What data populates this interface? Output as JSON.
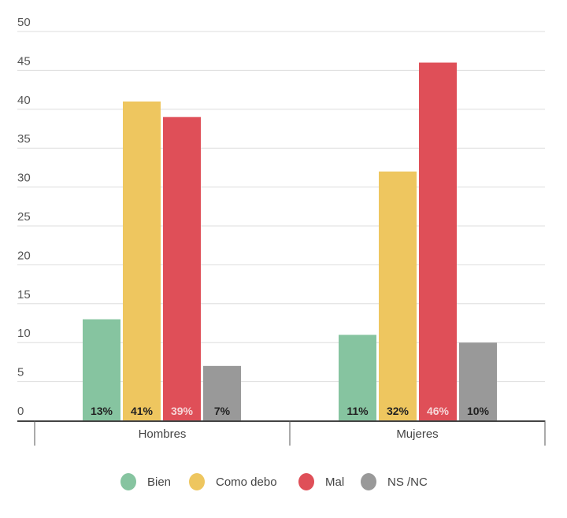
{
  "chart_data": {
    "type": "bar",
    "title": "",
    "xlabel": "",
    "ylabel": "",
    "ylim": [
      0,
      50
    ],
    "yticks": [
      0,
      5,
      10,
      15,
      20,
      25,
      30,
      35,
      40,
      45,
      50
    ],
    "grid": true,
    "categories": [
      "Hombres",
      "Mujeres"
    ],
    "series": [
      {
        "name": "Bien",
        "values": [
          13,
          11
        ],
        "labels": [
          "13%",
          "11%"
        ],
        "color": "#86c4a0",
        "label_color": "#222222"
      },
      {
        "name": "Como debo",
        "values": [
          41,
          32
        ],
        "labels": [
          "41%",
          "32%"
        ],
        "color": "#eec65f",
        "label_color": "#222222"
      },
      {
        "name": "Mal",
        "values": [
          39,
          46
        ],
        "labels": [
          "39%",
          "46%"
        ],
        "color": "#df4f58",
        "label_color": "#f6d6d8"
      },
      {
        "name": "NS /NC",
        "values": [
          7,
          10
        ],
        "labels": [
          "7%",
          "10%"
        ],
        "color": "#999999",
        "label_color": "#222222"
      }
    ],
    "legend_position": "bottom-center"
  }
}
